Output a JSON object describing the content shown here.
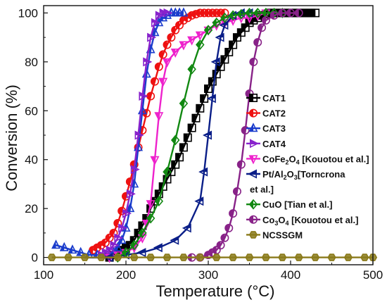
{
  "chart_data": {
    "type": "line",
    "xlabel": "Temperature (°C)",
    "ylabel": "Conversion (%)",
    "xlim": [
      100,
      500
    ],
    "ylim": [
      -3,
      103
    ],
    "xticks": [
      100,
      200,
      300,
      400,
      500
    ],
    "yticks": [
      0,
      20,
      40,
      60,
      80,
      100
    ],
    "legend_position": "right-center",
    "series": [
      {
        "name": "CAT1",
        "color": "#000000",
        "marker": "square",
        "x": [
          180,
          185,
          190,
          195,
          200,
          205,
          210,
          215,
          220,
          225,
          230,
          235,
          240,
          245,
          250,
          255,
          260,
          265,
          270,
          275,
          280,
          285,
          290,
          295,
          300,
          305,
          310,
          315,
          320,
          325,
          330,
          335,
          340,
          345,
          350,
          355,
          360,
          365,
          370,
          375,
          380,
          385,
          390,
          395,
          400,
          405,
          410,
          415,
          420,
          425,
          430
        ],
        "y": [
          0,
          1,
          2,
          3,
          4,
          5,
          7,
          10,
          13,
          16,
          20,
          23,
          26,
          29,
          32,
          35,
          38,
          41,
          45,
          49,
          53,
          57,
          61,
          65,
          69,
          72,
          75,
          78,
          81,
          84,
          87,
          90,
          92,
          94,
          96,
          97,
          98,
          99,
          99.5,
          100,
          100,
          100,
          100,
          100,
          100,
          100,
          100,
          100,
          100,
          100,
          100
        ]
      },
      {
        "name": "CAT2",
        "color": "#ee1111",
        "marker": "circle",
        "x": [
          160,
          165,
          170,
          175,
          180,
          185,
          190,
          195,
          200,
          205,
          210,
          215,
          220,
          225,
          230,
          235,
          240,
          245,
          250,
          255,
          260,
          265,
          270,
          275,
          280,
          285,
          290,
          295,
          300,
          305,
          310,
          315,
          320
        ],
        "y": [
          3,
          4,
          5,
          6,
          8,
          10,
          14,
          19,
          25,
          31,
          38,
          45,
          52,
          59,
          66,
          72,
          78,
          83,
          87,
          90,
          93,
          95,
          97,
          98,
          99,
          99.5,
          100,
          100,
          100,
          100,
          100,
          100,
          100
        ]
      },
      {
        "name": "CAT3",
        "color": "#1a3ccc",
        "marker": "triangle-up",
        "x": [
          115,
          125,
          135,
          145,
          155,
          165,
          175,
          185,
          190,
          195,
          200,
          205,
          210,
          215,
          220,
          225,
          230,
          235,
          240,
          245,
          250,
          255,
          260,
          265,
          270
        ],
        "y": [
          5,
          4,
          3,
          2,
          1,
          1,
          1,
          2,
          4,
          7,
          12,
          20,
          30,
          45,
          60,
          75,
          85,
          92,
          96,
          98,
          99,
          100,
          100,
          100,
          100
        ]
      },
      {
        "name": "CAT4",
        "color": "#8822cc",
        "marker": "triangle-right",
        "x": [
          170,
          175,
          180,
          185,
          190,
          195,
          200,
          205,
          210,
          215,
          220,
          225,
          230,
          235,
          240,
          245,
          250
        ],
        "y": [
          1,
          2,
          3,
          5,
          8,
          12,
          18,
          26,
          36,
          50,
          66,
          80,
          90,
          96,
          99,
          100,
          100
        ]
      },
      {
        "name": "CoFe2O4 [Kouotou et al.]",
        "color": "#ee22cc",
        "marker": "triangle-down",
        "x": [
          180,
          190,
          200,
          210,
          220,
          225,
          230,
          235,
          240,
          245,
          250,
          260,
          270,
          280,
          290,
          300,
          310,
          320,
          330,
          340,
          350,
          360,
          370
        ],
        "y": [
          0,
          1,
          2,
          4,
          8,
          14,
          22,
          40,
          58,
          72,
          80,
          84,
          87,
          89,
          91,
          93,
          95,
          96,
          97,
          98,
          98,
          99,
          100
        ]
      },
      {
        "name": "Pt/Al2O3 [Torncrona et al.]",
        "color": "#0a1e88",
        "marker": "triangle-left",
        "x": [
          180,
          200,
          220,
          240,
          260,
          275,
          290,
          295,
          300,
          305,
          310,
          315,
          320,
          330,
          340,
          350
        ],
        "y": [
          0,
          1,
          2,
          4,
          7,
          12,
          23,
          35,
          50,
          65,
          80,
          90,
          95,
          99,
          100,
          100
        ]
      },
      {
        "name": "CuO [Tian et al.]",
        "color": "#118811",
        "marker": "diamond",
        "x": [
          190,
          200,
          210,
          220,
          230,
          240,
          250,
          260,
          270,
          280,
          290,
          300,
          310,
          320,
          330,
          340,
          350,
          360,
          370,
          380,
          390
        ],
        "y": [
          0,
          2,
          5,
          10,
          16,
          23,
          35,
          48,
          63,
          77,
          87,
          93,
          96,
          98,
          99,
          99.5,
          100,
          100,
          100,
          100,
          100
        ]
      },
      {
        "name": "Co3O4 [Kouotou et al.]",
        "color": "#882288",
        "marker": "circle",
        "x": [
          280,
          290,
          300,
          305,
          310,
          315,
          320,
          325,
          330,
          335,
          340,
          345,
          350,
          355,
          360,
          365,
          370,
          380,
          390,
          400,
          410
        ],
        "y": [
          0,
          0,
          1,
          2,
          3,
          5,
          8,
          12,
          18,
          27,
          38,
          52,
          67,
          80,
          88,
          94,
          97,
          99,
          100,
          100,
          100
        ]
      },
      {
        "name": "NCSSGM",
        "color": "#8a7a1a",
        "marker": "hexagon",
        "x": [
          110,
          130,
          150,
          170,
          190,
          210,
          230,
          250,
          270,
          290,
          310,
          330,
          350,
          370,
          390,
          410,
          430,
          450,
          470,
          490,
          500
        ],
        "y": [
          0,
          0,
          0,
          0,
          0,
          0,
          0,
          0,
          0,
          0,
          0,
          0,
          0,
          0,
          0,
          0,
          0,
          0,
          0,
          0,
          0
        ]
      }
    ],
    "legend_labels": [
      {
        "text": "CAT1"
      },
      {
        "text": "CAT2"
      },
      {
        "text": "CAT3"
      },
      {
        "text": "CAT4"
      },
      {
        "text": "CoFe",
        "sub": "2",
        "text2": "O",
        "sub2": "4",
        "text3": " [Kouotou et al.]"
      },
      {
        "text": "Pt/Al",
        "sub": "2",
        "text2": "O",
        "sub2": "3",
        "text3": "[Torncrona"
      },
      {
        "text": "CuO [Tian et al.]"
      },
      {
        "text": "Co",
        "sub": "3",
        "text2": "O",
        "sub2": "4",
        "text3": " [Kouotou et al.]"
      },
      {
        "text": "NCSSGM"
      }
    ],
    "legend_continuation": "et al.]"
  }
}
